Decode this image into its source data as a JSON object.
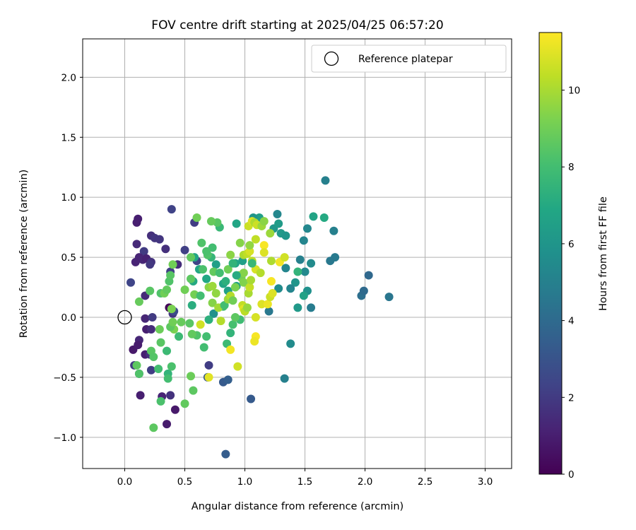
{
  "chart_data": {
    "type": "scatter",
    "title": "FOV centre drift starting at 2025/04/25 06:57:20",
    "xlabel": "Angular distance from reference (arcmin)",
    "ylabel": "Rotation from reference (arcmin)",
    "xlim": [
      -0.35,
      3.22
    ],
    "ylim": [
      -1.26,
      2.32
    ],
    "xticks": [
      "0.0",
      "0.5",
      "1.0",
      "1.5",
      "2.0",
      "2.5",
      "3.0"
    ],
    "yticks": [
      "−1.0",
      "−0.5",
      "0.0",
      "0.5",
      "1.0",
      "1.5",
      "2.0"
    ],
    "grid": true,
    "legend": {
      "position": "top-right",
      "entries": [
        "Reference platepar"
      ]
    },
    "reference_point": {
      "x": 0.0,
      "y": 0.0,
      "marker": "open-circle"
    },
    "colorbar": {
      "label": "Hours from first FF file",
      "colormap": "viridis",
      "range": [
        0,
        11.5
      ],
      "ticks": [
        "0",
        "2",
        "4",
        "6",
        "8",
        "10"
      ]
    },
    "points": [
      {
        "x": 0.11,
        "y": 0.82,
        "c": 1.0
      },
      {
        "x": 0.1,
        "y": 0.79,
        "c": 1.0
      },
      {
        "x": 0.22,
        "y": 0.68,
        "c": 1.6
      },
      {
        "x": 0.25,
        "y": 0.66,
        "c": 1.8
      },
      {
        "x": 0.29,
        "y": 0.65,
        "c": 1.8
      },
      {
        "x": 0.1,
        "y": 0.61,
        "c": 1.4
      },
      {
        "x": 0.16,
        "y": 0.55,
        "c": 2.0
      },
      {
        "x": 0.34,
        "y": 0.57,
        "c": 1.6
      },
      {
        "x": 0.12,
        "y": 0.5,
        "c": 1.2
      },
      {
        "x": 0.15,
        "y": 0.48,
        "c": 1.3
      },
      {
        "x": 0.18,
        "y": 0.49,
        "c": 1.1
      },
      {
        "x": 0.09,
        "y": 0.46,
        "c": 1.2
      },
      {
        "x": 0.22,
        "y": 0.46,
        "c": 1.7
      },
      {
        "x": 0.21,
        "y": 0.44,
        "c": 1.9
      },
      {
        "x": 0.44,
        "y": 0.44,
        "c": 1.5
      },
      {
        "x": 0.38,
        "y": 0.38,
        "c": 2.2
      },
      {
        "x": 0.05,
        "y": 0.29,
        "c": 2.4
      },
      {
        "x": 0.17,
        "y": 0.18,
        "c": 1.4
      },
      {
        "x": 0.37,
        "y": 0.08,
        "c": 0.2
      },
      {
        "x": 0.4,
        "y": 0.03,
        "c": 1.8
      },
      {
        "x": 0.17,
        "y": -0.01,
        "c": 1.3
      },
      {
        "x": 0.23,
        "y": 0.0,
        "c": 2.0
      },
      {
        "x": 0.18,
        "y": -0.1,
        "c": 1.0
      },
      {
        "x": 0.22,
        "y": -0.1,
        "c": 1.5
      },
      {
        "x": 0.12,
        "y": -0.19,
        "c": 1.3
      },
      {
        "x": 0.07,
        "y": -0.27,
        "c": 0.8
      },
      {
        "x": 0.11,
        "y": -0.23,
        "c": 0.9
      },
      {
        "x": 0.17,
        "y": -0.31,
        "c": 1.0
      },
      {
        "x": 0.21,
        "y": -0.31,
        "c": 1.6
      },
      {
        "x": 0.08,
        "y": -0.4,
        "c": 2.0
      },
      {
        "x": 0.12,
        "y": -0.47,
        "c": 2.2
      },
      {
        "x": 0.22,
        "y": -0.44,
        "c": 2.1
      },
      {
        "x": 0.13,
        "y": -0.65,
        "c": 1.0
      },
      {
        "x": 0.31,
        "y": -0.66,
        "c": 1.2
      },
      {
        "x": 0.38,
        "y": -0.65,
        "c": 1.7
      },
      {
        "x": 0.42,
        "y": -0.77,
        "c": 0.8
      },
      {
        "x": 0.35,
        "y": -0.89,
        "c": 0.9
      },
      {
        "x": 0.39,
        "y": 0.9,
        "c": 2.3
      },
      {
        "x": 0.58,
        "y": 0.79,
        "c": 2.1
      },
      {
        "x": 0.5,
        "y": 0.56,
        "c": 2.2
      },
      {
        "x": 0.6,
        "y": 0.47,
        "c": 2.4
      },
      {
        "x": 0.7,
        "y": -0.4,
        "c": 2.1
      },
      {
        "x": 0.69,
        "y": -0.5,
        "c": 3.2
      },
      {
        "x": 0.82,
        "y": -0.54,
        "c": 3.3
      },
      {
        "x": 0.86,
        "y": -0.52,
        "c": 3.5
      },
      {
        "x": 1.05,
        "y": -0.68,
        "c": 3.3
      },
      {
        "x": 0.84,
        "y": -1.14,
        "c": 3.4
      },
      {
        "x": 0.41,
        "y": 0.05,
        "c": 2.6
      },
      {
        "x": 1.67,
        "y": 1.14,
        "c": 5.0
      },
      {
        "x": 1.97,
        "y": 0.18,
        "c": 4.2
      },
      {
        "x": 1.99,
        "y": 0.22,
        "c": 4.0
      },
      {
        "x": 2.03,
        "y": 0.35,
        "c": 3.9
      },
      {
        "x": 2.2,
        "y": 0.17,
        "c": 4.5
      },
      {
        "x": 1.74,
        "y": 0.72,
        "c": 5.0
      },
      {
        "x": 1.75,
        "y": 0.5,
        "c": 4.7
      },
      {
        "x": 1.71,
        "y": 0.47,
        "c": 4.6
      },
      {
        "x": 1.33,
        "y": -0.51,
        "c": 5.0
      },
      {
        "x": 1.38,
        "y": -0.22,
        "c": 5.5
      },
      {
        "x": 1.55,
        "y": 0.08,
        "c": 4.8
      },
      {
        "x": 1.52,
        "y": 0.74,
        "c": 5.3
      },
      {
        "x": 1.27,
        "y": 0.86,
        "c": 5.3
      },
      {
        "x": 1.46,
        "y": 0.48,
        "c": 5.0
      },
      {
        "x": 1.49,
        "y": 0.64,
        "c": 5.2
      },
      {
        "x": 1.5,
        "y": 0.38,
        "c": 5.4
      },
      {
        "x": 1.55,
        "y": 0.45,
        "c": 5.5
      },
      {
        "x": 1.52,
        "y": 0.22,
        "c": 5.8
      },
      {
        "x": 1.42,
        "y": 0.29,
        "c": 6.0
      },
      {
        "x": 1.38,
        "y": 0.24,
        "c": 5.2
      },
      {
        "x": 1.34,
        "y": 0.41,
        "c": 5.2
      },
      {
        "x": 1.3,
        "y": 0.7,
        "c": 6.2
      },
      {
        "x": 1.34,
        "y": 0.68,
        "c": 6.0
      },
      {
        "x": 1.24,
        "y": 0.74,
        "c": 6.1
      },
      {
        "x": 1.28,
        "y": 0.78,
        "c": 6.3
      },
      {
        "x": 1.2,
        "y": 0.05,
        "c": 4.6
      },
      {
        "x": 1.28,
        "y": 0.24,
        "c": 5.5
      },
      {
        "x": 1.44,
        "y": 0.08,
        "c": 6.2
      },
      {
        "x": 1.44,
        "y": 0.38,
        "c": 7.5
      },
      {
        "x": 1.49,
        "y": 0.18,
        "c": 6.6
      },
      {
        "x": 1.57,
        "y": 0.84,
        "c": 6.7
      },
      {
        "x": 1.66,
        "y": 0.83,
        "c": 7.0
      },
      {
        "x": 1.12,
        "y": 0.83,
        "c": 6.5
      },
      {
        "x": 1.07,
        "y": 0.83,
        "c": 6.0
      },
      {
        "x": 0.93,
        "y": 0.78,
        "c": 6.8
      },
      {
        "x": 0.98,
        "y": 0.47,
        "c": 6.5
      },
      {
        "x": 0.92,
        "y": 0.45,
        "c": 6.8
      },
      {
        "x": 0.93,
        "y": 0.26,
        "c": 6.5
      },
      {
        "x": 0.86,
        "y": 0.22,
        "c": 6.6
      },
      {
        "x": 0.82,
        "y": 0.28,
        "c": 6.8
      },
      {
        "x": 0.87,
        "y": 0.16,
        "c": 7.2
      },
      {
        "x": 0.74,
        "y": 0.03,
        "c": 5.8
      },
      {
        "x": 0.76,
        "y": 0.44,
        "c": 6.5
      },
      {
        "x": 0.68,
        "y": 0.32,
        "c": 6.9
      },
      {
        "x": 0.72,
        "y": 0.5,
        "c": 7.6
      },
      {
        "x": 0.62,
        "y": 0.4,
        "c": 6.9
      },
      {
        "x": 0.57,
        "y": 0.3,
        "c": 7.0
      },
      {
        "x": 0.56,
        "y": 0.1,
        "c": 7.2
      },
      {
        "x": 0.58,
        "y": 0.5,
        "c": 6.8
      },
      {
        "x": 0.69,
        "y": 0.52,
        "c": 8.3
      },
      {
        "x": 0.7,
        "y": -0.02,
        "c": 7.3
      },
      {
        "x": 0.85,
        "y": -0.22,
        "c": 7.8
      },
      {
        "x": 0.79,
        "y": 0.75,
        "c": 7.7
      },
      {
        "x": 0.77,
        "y": 0.79,
        "c": 8.5
      },
      {
        "x": 0.72,
        "y": 0.8,
        "c": 8.8
      },
      {
        "x": 0.73,
        "y": 0.58,
        "c": 8.0
      },
      {
        "x": 0.68,
        "y": 0.55,
        "c": 8.2
      },
      {
        "x": 0.64,
        "y": 0.62,
        "c": 8.3
      },
      {
        "x": 0.6,
        "y": 0.83,
        "c": 9.0
      },
      {
        "x": 0.55,
        "y": 0.5,
        "c": 8.7
      },
      {
        "x": 0.65,
        "y": 0.4,
        "c": 8.2
      },
      {
        "x": 0.74,
        "y": 0.38,
        "c": 8.7
      },
      {
        "x": 0.79,
        "y": 0.37,
        "c": 8.0
      },
      {
        "x": 0.82,
        "y": 0.09,
        "c": 7.9
      },
      {
        "x": 0.88,
        "y": -0.13,
        "c": 7.5
      },
      {
        "x": 0.9,
        "y": -0.06,
        "c": 8.1
      },
      {
        "x": 0.96,
        "y": -0.02,
        "c": 7.9
      },
      {
        "x": 0.92,
        "y": 0.0,
        "c": 8.6
      },
      {
        "x": 0.68,
        "y": -0.16,
        "c": 8.0
      },
      {
        "x": 0.66,
        "y": -0.25,
        "c": 8.0
      },
      {
        "x": 0.6,
        "y": -0.15,
        "c": 8.3
      },
      {
        "x": 0.54,
        "y": -0.05,
        "c": 8.5
      },
      {
        "x": 0.56,
        "y": -0.14,
        "c": 8.7
      },
      {
        "x": 0.55,
        "y": -0.49,
        "c": 8.9
      },
      {
        "x": 0.57,
        "y": -0.61,
        "c": 8.6
      },
      {
        "x": 0.5,
        "y": -0.72,
        "c": 8.7
      },
      {
        "x": 0.45,
        "y": -0.16,
        "c": 7.8
      },
      {
        "x": 0.47,
        "y": -0.04,
        "c": 8.8
      },
      {
        "x": 0.41,
        "y": -0.1,
        "c": 9.2
      },
      {
        "x": 0.38,
        "y": -0.08,
        "c": 8.6
      },
      {
        "x": 0.29,
        "y": -0.1,
        "c": 8.9
      },
      {
        "x": 0.3,
        "y": -0.21,
        "c": 8.5
      },
      {
        "x": 0.35,
        "y": -0.28,
        "c": 7.8
      },
      {
        "x": 0.22,
        "y": -0.28,
        "c": 8.5
      },
      {
        "x": 0.24,
        "y": -0.33,
        "c": 8.4
      },
      {
        "x": 0.28,
        "y": -0.43,
        "c": 8.0
      },
      {
        "x": 0.36,
        "y": -0.47,
        "c": 7.5
      },
      {
        "x": 0.36,
        "y": -0.51,
        "c": 8.0
      },
      {
        "x": 0.39,
        "y": -0.41,
        "c": 8.2
      },
      {
        "x": 0.3,
        "y": -0.7,
        "c": 8.2
      },
      {
        "x": 0.24,
        "y": -0.92,
        "c": 8.6
      },
      {
        "x": 0.12,
        "y": -0.47,
        "c": 8.3
      },
      {
        "x": 0.1,
        "y": -0.4,
        "c": 8.6
      },
      {
        "x": 0.12,
        "y": 0.13,
        "c": 8.8
      },
      {
        "x": 0.21,
        "y": 0.22,
        "c": 8.5
      },
      {
        "x": 0.3,
        "y": 0.2,
        "c": 8.3
      },
      {
        "x": 0.33,
        "y": 0.2,
        "c": 9.0
      },
      {
        "x": 0.35,
        "y": 0.23,
        "c": 8.7
      },
      {
        "x": 0.37,
        "y": 0.3,
        "c": 8.3
      },
      {
        "x": 0.38,
        "y": 0.35,
        "c": 8.5
      },
      {
        "x": 0.4,
        "y": 0.44,
        "c": 9.0
      },
      {
        "x": 0.39,
        "y": 0.07,
        "c": 9.2
      },
      {
        "x": 0.4,
        "y": -0.04,
        "c": 9.0
      },
      {
        "x": 0.5,
        "y": 0.23,
        "c": 9.0
      },
      {
        "x": 0.55,
        "y": 0.32,
        "c": 8.6
      },
      {
        "x": 0.58,
        "y": 0.19,
        "c": 9.1
      },
      {
        "x": 0.63,
        "y": 0.18,
        "c": 8.0
      },
      {
        "x": 0.7,
        "y": 0.25,
        "c": 9.5
      },
      {
        "x": 0.73,
        "y": 0.26,
        "c": 9.8
      },
      {
        "x": 0.73,
        "y": 0.12,
        "c": 9.4
      },
      {
        "x": 0.76,
        "y": 0.2,
        "c": 9.6
      },
      {
        "x": 0.78,
        "y": 0.08,
        "c": 9.9
      },
      {
        "x": 0.8,
        "y": -0.03,
        "c": 10.2
      },
      {
        "x": 0.63,
        "y": -0.06,
        "c": 10.7
      },
      {
        "x": 0.7,
        "y": -0.5,
        "c": 11.0
      },
      {
        "x": 0.88,
        "y": -0.27,
        "c": 11.3
      },
      {
        "x": 0.94,
        "y": -0.41,
        "c": 10.7
      },
      {
        "x": 0.83,
        "y": 0.1,
        "c": 8.0
      },
      {
        "x": 0.86,
        "y": 0.15,
        "c": 9.8
      },
      {
        "x": 0.88,
        "y": 0.18,
        "c": 10.2
      },
      {
        "x": 0.9,
        "y": 0.14,
        "c": 9.0
      },
      {
        "x": 0.92,
        "y": 0.25,
        "c": 9.2
      },
      {
        "x": 0.95,
        "y": 0.35,
        "c": 9.6
      },
      {
        "x": 0.97,
        "y": 0.33,
        "c": 9.1
      },
      {
        "x": 0.99,
        "y": 0.29,
        "c": 9.3
      },
      {
        "x": 0.98,
        "y": 0.1,
        "c": 10.4
      },
      {
        "x": 0.99,
        "y": 0.07,
        "c": 11.0
      },
      {
        "x": 1.0,
        "y": 0.05,
        "c": 10.3
      },
      {
        "x": 1.02,
        "y": 0.08,
        "c": 9.7
      },
      {
        "x": 1.03,
        "y": 0.2,
        "c": 10.0
      },
      {
        "x": 1.04,
        "y": 0.25,
        "c": 10.5
      },
      {
        "x": 1.05,
        "y": 0.31,
        "c": 10.0
      },
      {
        "x": 0.86,
        "y": 0.4,
        "c": 9.0
      },
      {
        "x": 0.88,
        "y": 0.52,
        "c": 9.5
      },
      {
        "x": 0.96,
        "y": 0.62,
        "c": 9.4
      },
      {
        "x": 0.99,
        "y": 0.52,
        "c": 10.1
      },
      {
        "x": 1.02,
        "y": 0.53,
        "c": 10.4
      },
      {
        "x": 1.04,
        "y": 0.55,
        "c": 10.8
      },
      {
        "x": 1.06,
        "y": 0.47,
        "c": 10.3
      },
      {
        "x": 1.03,
        "y": 0.76,
        "c": 10.6
      },
      {
        "x": 1.06,
        "y": 0.8,
        "c": 10.9
      },
      {
        "x": 1.08,
        "y": 0.79,
        "c": 10.1
      },
      {
        "x": 1.1,
        "y": 0.77,
        "c": 10.6
      },
      {
        "x": 1.14,
        "y": 0.76,
        "c": 9.8
      },
      {
        "x": 1.16,
        "y": 0.8,
        "c": 9.5
      },
      {
        "x": 1.09,
        "y": 0.65,
        "c": 10.4
      },
      {
        "x": 1.04,
        "y": 0.6,
        "c": 9.6
      },
      {
        "x": 1.09,
        "y": 0.4,
        "c": 10.8
      },
      {
        "x": 1.13,
        "y": 0.37,
        "c": 10.2
      },
      {
        "x": 1.16,
        "y": 0.6,
        "c": 11.4
      },
      {
        "x": 1.16,
        "y": 0.54,
        "c": 10.9
      },
      {
        "x": 1.14,
        "y": 0.11,
        "c": 10.9
      },
      {
        "x": 1.19,
        "y": 0.11,
        "c": 11.2
      },
      {
        "x": 1.21,
        "y": 0.17,
        "c": 10.6
      },
      {
        "x": 1.23,
        "y": 0.2,
        "c": 10.9
      },
      {
        "x": 1.22,
        "y": 0.3,
        "c": 11.4
      },
      {
        "x": 1.22,
        "y": 0.47,
        "c": 10.1
      },
      {
        "x": 1.29,
        "y": 0.46,
        "c": 11.3
      },
      {
        "x": 1.33,
        "y": 0.5,
        "c": 10.7
      },
      {
        "x": 1.21,
        "y": 0.7,
        "c": 9.8
      },
      {
        "x": 1.09,
        "y": -0.16,
        "c": 11.4
      },
      {
        "x": 1.08,
        "y": -0.2,
        "c": 11.2
      },
      {
        "x": 1.09,
        "y": 0.0,
        "c": 10.8
      },
      {
        "x": 0.99,
        "y": 0.37,
        "c": 9.4
      },
      {
        "x": 0.9,
        "y": 0.45,
        "c": 7.5
      },
      {
        "x": 0.84,
        "y": 0.3,
        "c": 7.3
      },
      {
        "x": 0.93,
        "y": 0.35,
        "c": 7.1
      },
      {
        "x": 1.06,
        "y": 0.45,
        "c": 7.7
      }
    ]
  }
}
